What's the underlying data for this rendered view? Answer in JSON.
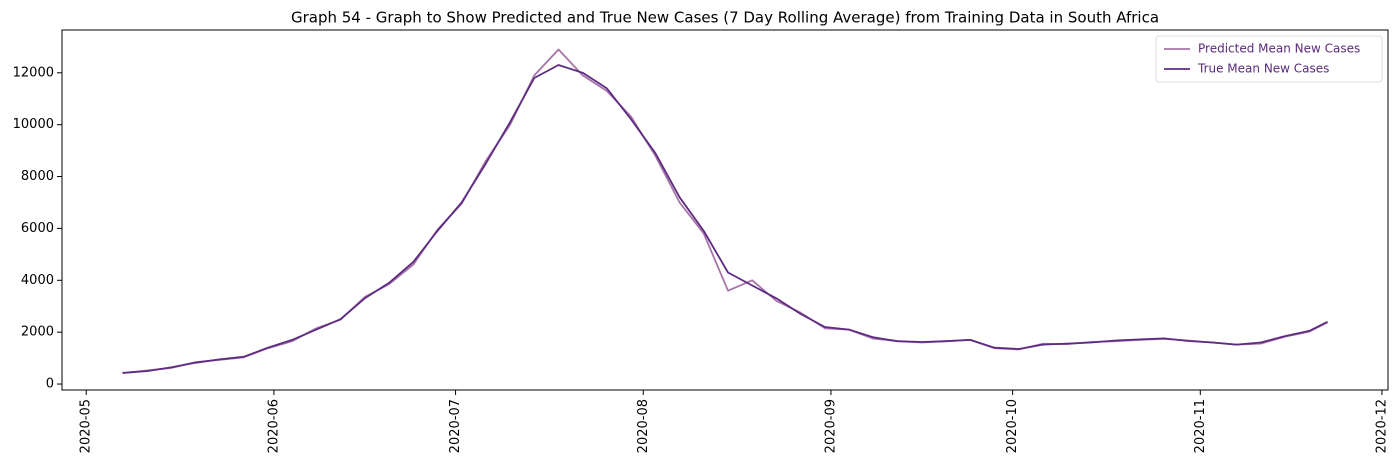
{
  "chart_data": {
    "type": "line",
    "title": "Graph 54 - Graph to Show Predicted and True New Cases (7 Day Rolling Average) from Training Data in South Africa",
    "x": [
      "2020-05-07",
      "2020-05-11",
      "2020-05-15",
      "2020-05-19",
      "2020-05-23",
      "2020-05-27",
      "2020-05-31",
      "2020-06-04",
      "2020-06-08",
      "2020-06-12",
      "2020-06-16",
      "2020-06-20",
      "2020-06-24",
      "2020-06-28",
      "2020-07-02",
      "2020-07-06",
      "2020-07-10",
      "2020-07-14",
      "2020-07-18",
      "2020-07-22",
      "2020-07-26",
      "2020-07-30",
      "2020-08-03",
      "2020-08-07",
      "2020-08-11",
      "2020-08-15",
      "2020-08-19",
      "2020-08-23",
      "2020-08-27",
      "2020-08-31",
      "2020-09-04",
      "2020-09-08",
      "2020-09-12",
      "2020-09-16",
      "2020-09-20",
      "2020-09-24",
      "2020-09-28",
      "2020-10-02",
      "2020-10-06",
      "2020-10-10",
      "2020-10-14",
      "2020-10-18",
      "2020-10-22",
      "2020-10-26",
      "2020-10-30",
      "2020-11-03",
      "2020-11-07",
      "2020-11-11",
      "2020-11-15",
      "2020-11-19",
      "2020-11-22"
    ],
    "series": [
      {
        "name": "Predicted Mean New Cases",
        "color": "#a774a8",
        "values": [
          420,
          520,
          620,
          840,
          930,
          1030,
          1380,
          1650,
          2150,
          2480,
          3350,
          3850,
          4600,
          5950,
          6950,
          8600,
          10000,
          11900,
          12900,
          11900,
          11300,
          10300,
          8800,
          7000,
          5800,
          3600,
          4000,
          3200,
          2750,
          2150,
          2100,
          1750,
          1650,
          1600,
          1650,
          1700,
          1380,
          1330,
          1550,
          1540,
          1620,
          1650,
          1700,
          1740,
          1680,
          1600,
          1520,
          1560,
          1830,
          2020,
          2380
        ]
      },
      {
        "name": "True Mean New Cases",
        "color": "#5e2b82",
        "values": [
          430,
          500,
          640,
          820,
          950,
          1050,
          1400,
          1700,
          2100,
          2500,
          3300,
          3900,
          4700,
          5900,
          7000,
          8500,
          10100,
          11800,
          12300,
          12000,
          11400,
          10200,
          8900,
          7200,
          5900,
          4300,
          3800,
          3300,
          2700,
          2200,
          2100,
          1800,
          1650,
          1620,
          1650,
          1700,
          1400,
          1350,
          1520,
          1560,
          1600,
          1680,
          1720,
          1760,
          1660,
          1600,
          1520,
          1600,
          1850,
          2050,
          2400
        ]
      }
    ],
    "xlim": [
      "2020-04-27",
      "2020-12-02"
    ],
    "xticks": [
      "2020-05",
      "2020-06",
      "2020-07",
      "2020-08",
      "2020-09",
      "2020-10",
      "2020-11",
      "2020-12"
    ],
    "ylim": [
      -230,
      13650
    ],
    "yticks": [
      0,
      2000,
      4000,
      6000,
      8000,
      10000,
      12000
    ],
    "legend": "upper right"
  }
}
